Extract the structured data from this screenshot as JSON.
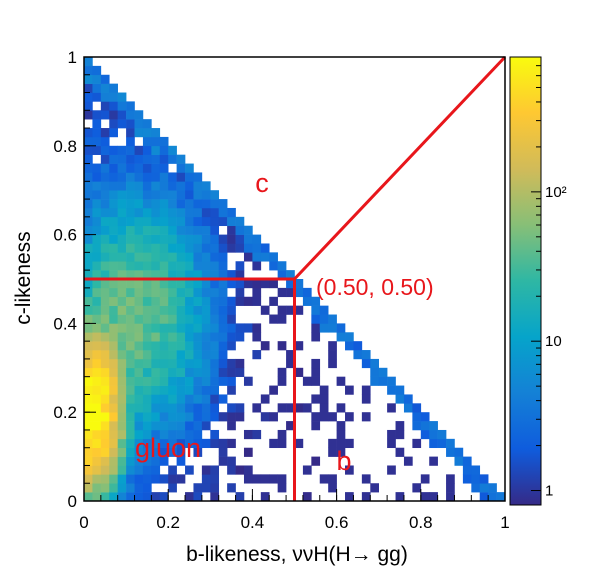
{
  "chart_data": {
    "type": "heatmap",
    "title": "",
    "xlabel": "b-likeness, ννH(H→ gg)",
    "ylabel": "c-likeness",
    "xlim": [
      0,
      1
    ],
    "ylim": [
      0,
      1
    ],
    "x_ticks": [
      "0",
      "0.2",
      "0.4",
      "0.6",
      "0.8",
      "1"
    ],
    "y_ticks": [
      "0",
      "0.2",
      "0.4",
      "0.6",
      "0.8",
      "1"
    ],
    "x_tick_values": [
      0,
      0.2,
      0.4,
      0.6,
      0.8,
      1
    ],
    "y_tick_values": [
      0,
      0.2,
      0.4,
      0.6,
      0.8,
      1
    ],
    "colorbar": {
      "scale": "log",
      "range": [
        0.8,
        800
      ],
      "tick_labels": [
        "1",
        "10",
        "10²"
      ],
      "tick_values": [
        1,
        10,
        100
      ]
    },
    "bins": 50,
    "bin_width": 0.02,
    "population_note": "Entries populate the triangular region x + y <= 1; density peaks near (0.02, 0.2) and falls off along the diagonal toward (1, 0).",
    "cut_lines": [
      {
        "name": "horizontal",
        "points": [
          [
            0,
            0.5
          ],
          [
            0.5,
            0.5
          ]
        ]
      },
      {
        "name": "vertical",
        "points": [
          [
            0.5,
            0.5
          ],
          [
            0.5,
            0
          ]
        ]
      },
      {
        "name": "diagonal",
        "points": [
          [
            0.5,
            0.5
          ],
          [
            1,
            1
          ]
        ]
      }
    ],
    "annotations": {
      "c_region": "c",
      "b_region": "b",
      "gluon_region": "gluon",
      "cut_point": "(0.50, 0.50)"
    },
    "colors": {
      "annotation": "#e8161b",
      "palette": [
        "#352a87",
        "#0f5cdd",
        "#1481d6",
        "#06a4ca",
        "#2eb7a4",
        "#87bf77",
        "#d1bb59",
        "#fec832",
        "#f9fb0e"
      ]
    }
  }
}
